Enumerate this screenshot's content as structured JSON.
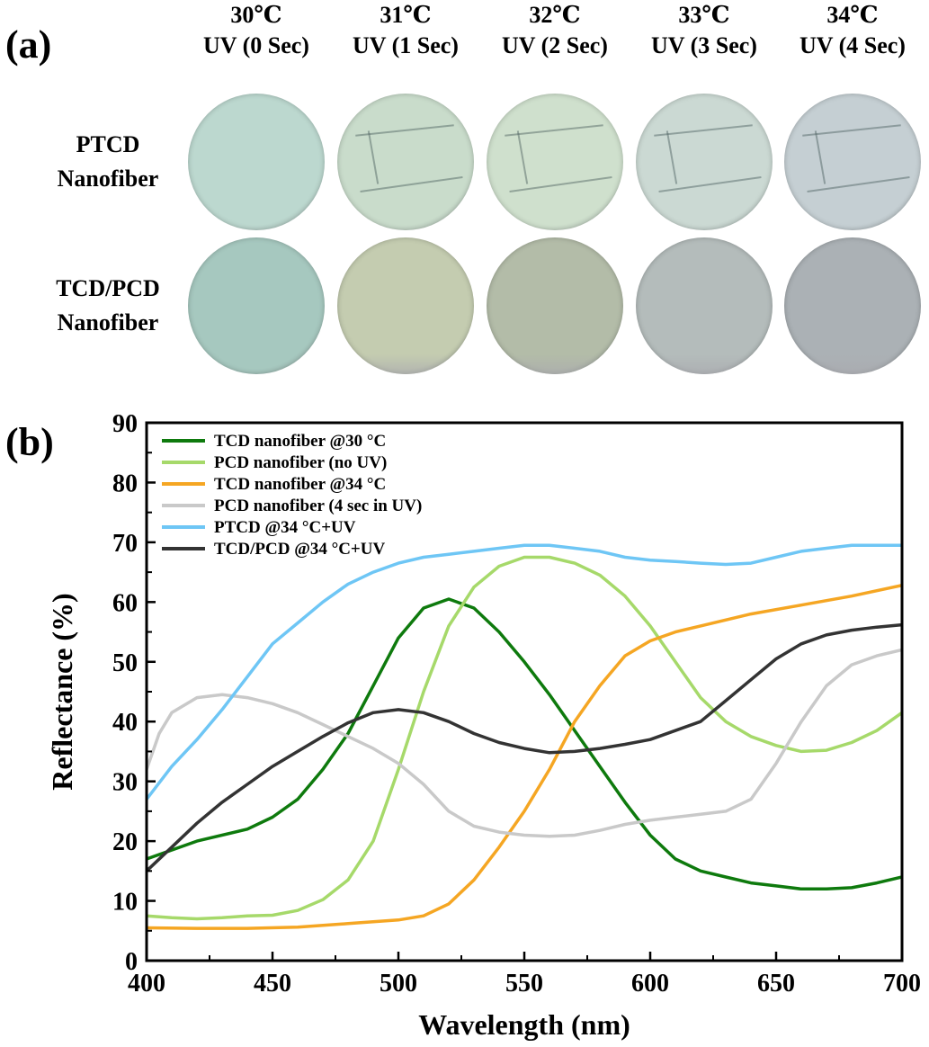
{
  "panel_a": {
    "label": "(a)",
    "columns": [
      {
        "temp": "30℃",
        "uv": "UV (0 Sec)"
      },
      {
        "temp": "31℃",
        "uv": "UV (1 Sec)"
      },
      {
        "temp": "32℃",
        "uv": "UV (2 Sec)"
      },
      {
        "temp": "33℃",
        "uv": "UV (3 Sec)"
      },
      {
        "temp": "34℃",
        "uv": "UV (4 Sec)"
      }
    ],
    "rows": [
      {
        "line1": "PTCD",
        "line2": "Nanofiber",
        "colors": [
          "#bcd8cf",
          "#c9dccb",
          "#cfe0cd",
          "#cbd9d3",
          "#c5cfd3"
        ]
      },
      {
        "line1": "TCD/PCD",
        "line2": "Nanofiber",
        "colors": [
          "#a6c8bf",
          "#c4ccb0",
          "#b3bca8",
          "#b4bcbb",
          "#abb1b5"
        ]
      }
    ]
  },
  "chart_data": {
    "panel_label": "(b)",
    "type": "line",
    "xlabel": "Wavelength (nm)",
    "ylabel": "Reflectance (%)",
    "xlim": [
      400,
      700
    ],
    "ylim": [
      0,
      90
    ],
    "xticks": [
      400,
      450,
      500,
      550,
      600,
      650,
      700
    ],
    "yticks": [
      0,
      10,
      20,
      30,
      40,
      50,
      60,
      70,
      80,
      90
    ],
    "legend_position": "top-left",
    "series": [
      {
        "name": "TCD nanofiber @30 °C",
        "color": "#0e7a0d",
        "x": [
          400,
          420,
          440,
          450,
          460,
          470,
          480,
          490,
          500,
          510,
          520,
          530,
          540,
          550,
          560,
          570,
          580,
          590,
          600,
          610,
          620,
          630,
          640,
          650,
          660,
          670,
          680,
          690,
          700
        ],
        "y": [
          17,
          20,
          22,
          24,
          27,
          32,
          38,
          46,
          54,
          59,
          60.5,
          59,
          55,
          50,
          44.5,
          38.5,
          32.5,
          26.5,
          21,
          17,
          15,
          14,
          13,
          12.5,
          12,
          12,
          12.2,
          13,
          14
        ]
      },
      {
        "name": "PCD nanofiber (no UV)",
        "color": "#a6d96a",
        "x": [
          400,
          410,
          420,
          430,
          440,
          450,
          460,
          470,
          480,
          490,
          500,
          510,
          520,
          530,
          540,
          550,
          560,
          570,
          580,
          590,
          600,
          610,
          620,
          630,
          640,
          650,
          660,
          670,
          680,
          690,
          700
        ],
        "y": [
          7.5,
          7.2,
          7,
          7.2,
          7.5,
          7.6,
          8.4,
          10.2,
          13.5,
          20,
          32,
          45,
          56,
          62.5,
          66,
          67.5,
          67.5,
          66.5,
          64.5,
          61,
          56,
          50,
          44,
          40,
          37.5,
          36,
          35,
          35.2,
          36.5,
          38.5,
          41.5
        ]
      },
      {
        "name": "TCD nanofiber @34 °C",
        "color": "#f5a623",
        "x": [
          400,
          420,
          440,
          460,
          480,
          490,
          500,
          510,
          520,
          530,
          540,
          550,
          560,
          570,
          580,
          590,
          600,
          610,
          620,
          640,
          660,
          680,
          700
        ],
        "y": [
          5.5,
          5.4,
          5.4,
          5.6,
          6.2,
          6.5,
          6.8,
          7.5,
          9.5,
          13.5,
          19,
          25,
          32,
          40,
          46,
          51,
          53.5,
          55,
          56,
          58,
          59.5,
          61,
          62.8
        ]
      },
      {
        "name": "PCD nanofiber (4 sec in UV)",
        "color": "#c9c9c9",
        "x": [
          400,
          405,
          410,
          420,
          430,
          440,
          450,
          460,
          470,
          480,
          490,
          500,
          510,
          520,
          530,
          540,
          550,
          560,
          570,
          580,
          590,
          600,
          610,
          620,
          630,
          640,
          650,
          660,
          670,
          680,
          690,
          700
        ],
        "y": [
          32,
          38,
          41.5,
          44,
          44.5,
          44,
          43,
          41.5,
          39.5,
          37.5,
          35.5,
          33,
          29.5,
          25,
          22.5,
          21.5,
          21,
          20.8,
          21,
          21.8,
          22.8,
          23.5,
          24,
          24.5,
          25,
          27,
          33,
          40,
          46,
          49.5,
          51,
          52
        ]
      },
      {
        "name": "PTCD @34 °C+UV",
        "color": "#6ec6f5",
        "x": [
          400,
          410,
          420,
          430,
          440,
          450,
          460,
          470,
          480,
          490,
          500,
          510,
          520,
          530,
          540,
          550,
          560,
          570,
          580,
          590,
          600,
          610,
          620,
          630,
          640,
          650,
          660,
          670,
          680,
          690,
          700
        ],
        "y": [
          27,
          32.5,
          37,
          42,
          47.5,
          53,
          56.5,
          60,
          63,
          65,
          66.5,
          67.5,
          68,
          68.5,
          69,
          69.5,
          69.5,
          69,
          68.5,
          67.5,
          67,
          66.8,
          66.5,
          66.3,
          66.5,
          67.5,
          68.5,
          69,
          69.5,
          69.5,
          69.5
        ]
      },
      {
        "name": "TCD/PCD @34 °C+UV",
        "color": "#333333",
        "x": [
          400,
          410,
          420,
          430,
          440,
          450,
          460,
          470,
          480,
          490,
          500,
          510,
          520,
          530,
          540,
          550,
          560,
          570,
          580,
          590,
          600,
          610,
          620,
          630,
          640,
          650,
          660,
          670,
          680,
          690,
          700
        ],
        "y": [
          15,
          19,
          23,
          26.5,
          29.5,
          32.5,
          35,
          37.5,
          39.8,
          41.5,
          42,
          41.5,
          40,
          38,
          36.5,
          35.5,
          34.8,
          35,
          35.5,
          36.2,
          37,
          38.5,
          40,
          43.5,
          47,
          50.5,
          53,
          54.5,
          55.3,
          55.8,
          56.2
        ]
      }
    ]
  }
}
